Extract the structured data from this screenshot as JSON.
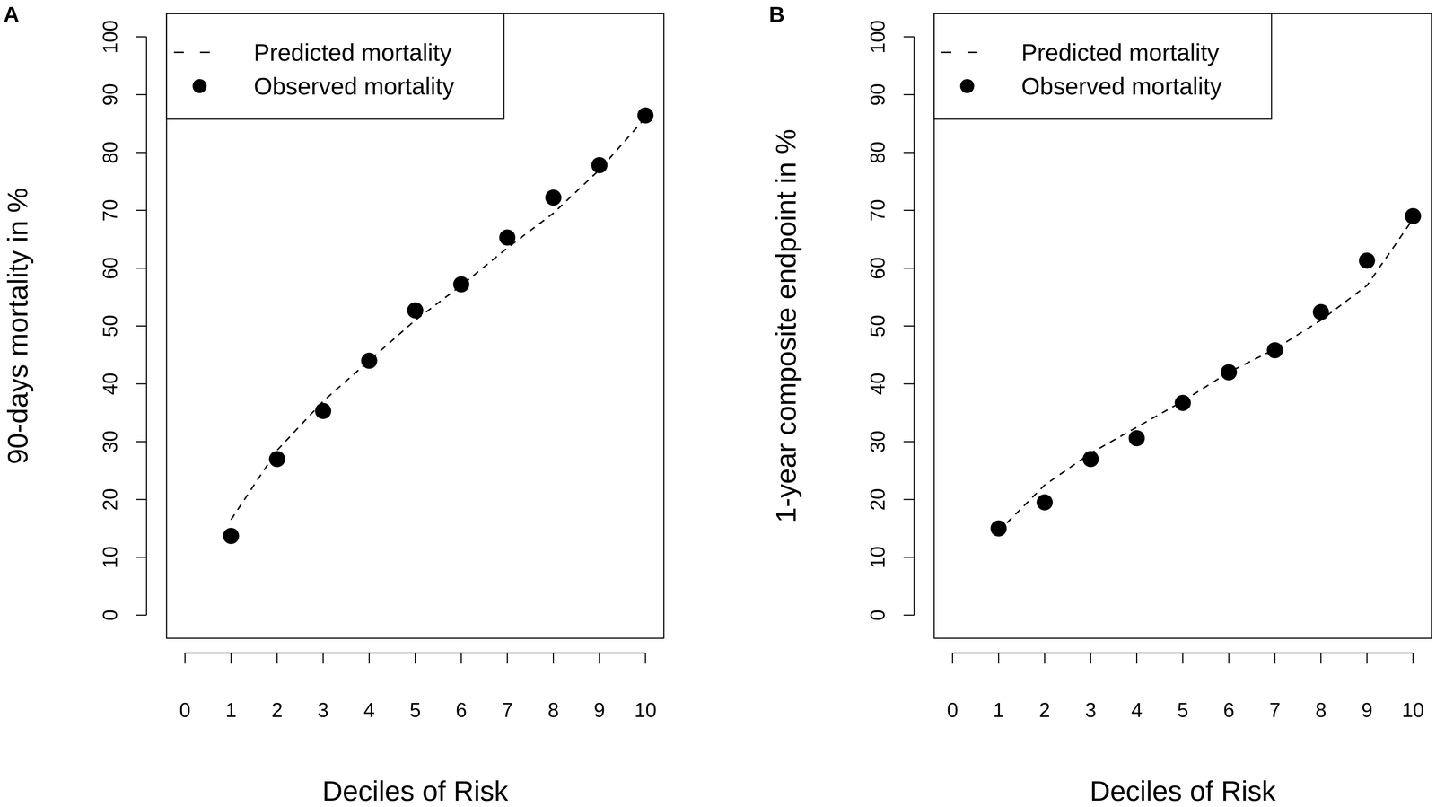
{
  "chart_data": [
    {
      "type": "line",
      "panel_label": "A",
      "x": [
        1,
        2,
        3,
        4,
        5,
        6,
        7,
        8,
        9,
        10
      ],
      "series": [
        {
          "name": "Predicted mortality",
          "type": "line",
          "line_style": "dashed",
          "color": "#000000",
          "values": [
            16.5,
            28.5,
            37,
            44,
            51,
            57,
            63.5,
            69.5,
            77,
            86
          ]
        },
        {
          "name": "Observed mortality",
          "type": "scatter",
          "marker": "circle",
          "color": "#000000",
          "values": [
            13.7,
            27,
            35.3,
            44,
            52.7,
            57.2,
            65.3,
            72.2,
            77.8,
            86.4
          ]
        }
      ],
      "x_label": "Deciles of Risk",
      "y_label": "90-days mortality in %",
      "xlim": [
        -0.4,
        10.4
      ],
      "xticks": [
        0,
        1,
        2,
        3,
        4,
        5,
        6,
        7,
        8,
        9,
        10
      ],
      "ylim": [
        -4,
        104
      ],
      "yticks": [
        0,
        10,
        20,
        30,
        40,
        50,
        60,
        70,
        80,
        90,
        100
      ],
      "grid": false,
      "legend": "top-left"
    },
    {
      "type": "line",
      "panel_label": "B",
      "x": [
        1,
        2,
        3,
        4,
        5,
        6,
        7,
        8,
        9,
        10
      ],
      "series": [
        {
          "name": "Predicted mortality",
          "type": "line",
          "line_style": "dashed",
          "color": "#000000",
          "values": [
            14.5,
            22.5,
            28,
            32.5,
            37,
            42,
            46,
            51,
            57,
            68.5
          ]
        },
        {
          "name": "Observed mortality",
          "type": "scatter",
          "marker": "circle",
          "color": "#000000",
          "values": [
            15,
            19.5,
            27,
            30.6,
            36.7,
            42,
            45.8,
            52.4,
            61.3,
            69
          ]
        }
      ],
      "x_label": "Deciles of Risk",
      "y_label": "1-year composite endpoint in %",
      "xlim": [
        -0.4,
        10.4
      ],
      "xticks": [
        0,
        1,
        2,
        3,
        4,
        5,
        6,
        7,
        8,
        9,
        10
      ],
      "ylim": [
        -4,
        104
      ],
      "yticks": [
        0,
        10,
        20,
        30,
        40,
        50,
        60,
        70,
        80,
        90,
        100
      ],
      "grid": false,
      "legend": "top-left"
    }
  ]
}
